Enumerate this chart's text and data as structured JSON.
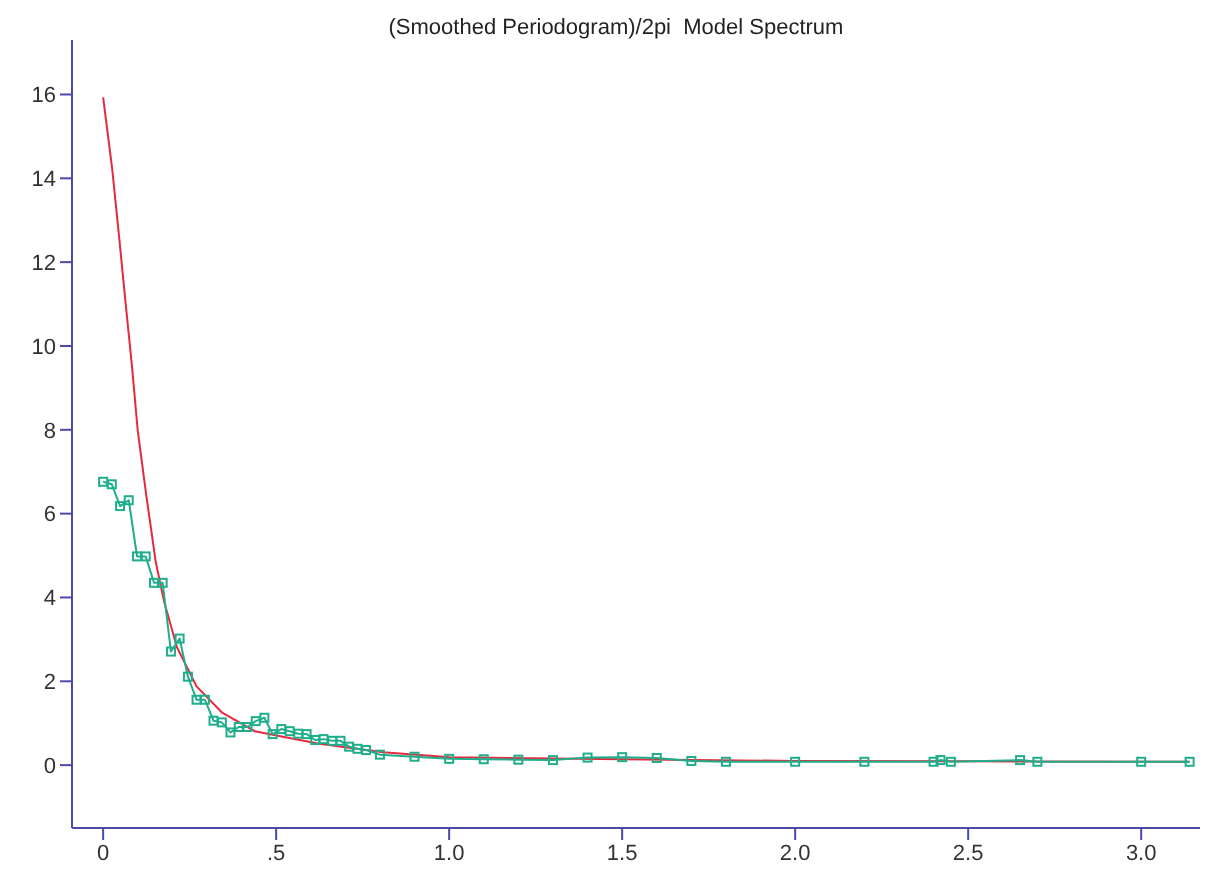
{
  "chart_data": {
    "type": "line",
    "title": "(Smoothed Periodogram)/2pi  Model Spectrum",
    "xlim": [
      -0.09,
      3.17
    ],
    "xticks": [
      0,
      {
        "value": 0.5,
        "label": ".5"
      },
      {
        "value": 1,
        "label": "1.0"
      },
      {
        "value": 1.5,
        "label": "1.5"
      },
      {
        "value": 2,
        "label": "2.0"
      },
      {
        "value": 2.5,
        "label": "2.5"
      },
      {
        "value": 3,
        "label": "3.0"
      }
    ],
    "ylim": [
      -1.5,
      17.3
    ],
    "yticks": [
      0,
      2,
      4,
      6,
      8,
      10,
      12,
      14,
      16
    ],
    "series": [
      {
        "color": "#e8283c",
        "marker": "none",
        "x": [
          0,
          0.026,
          0.045,
          0.064,
          0.083,
          0.1,
          0.125,
          0.152,
          0.176,
          0.213,
          0.27,
          0.344,
          0.438,
          0.624,
          0.81,
          1.0,
          1.5,
          2.0,
          2.5,
          3.14
        ],
        "values": [
          15.93,
          14.24,
          12.7,
          11.1,
          9.55,
          7.98,
          6.42,
          4.85,
          3.91,
          2.82,
          1.88,
          1.25,
          0.81,
          0.51,
          0.31,
          0.19,
          0.14,
          0.1,
          0.09,
          0.08
        ]
      },
      {
        "color": "#1fae8c",
        "marker": "square",
        "x": [
          0,
          0.025,
          0.049,
          0.074,
          0.098,
          0.123,
          0.147,
          0.172,
          0.196,
          0.221,
          0.245,
          0.27,
          0.294,
          0.319,
          0.343,
          0.368,
          0.392,
          0.417,
          0.441,
          0.466,
          0.49,
          0.515,
          0.539,
          0.564,
          0.588,
          0.613,
          0.637,
          0.662,
          0.686,
          0.711,
          0.735,
          0.76,
          0.8,
          0.9,
          1.0,
          1.1,
          1.2,
          1.3,
          1.4,
          1.5,
          1.6,
          1.7,
          1.8,
          2.0,
          2.2,
          2.4,
          2.42,
          2.45,
          2.65,
          2.7,
          3.0,
          3.14
        ],
        "values": [
          6.76,
          6.7,
          6.18,
          6.32,
          4.98,
          4.98,
          4.35,
          4.35,
          2.71,
          3.02,
          2.11,
          1.56,
          1.56,
          1.06,
          1.02,
          0.78,
          0.91,
          0.91,
          1.05,
          1.13,
          0.74,
          0.86,
          0.81,
          0.75,
          0.74,
          0.6,
          0.62,
          0.58,
          0.58,
          0.44,
          0.39,
          0.36,
          0.25,
          0.2,
          0.15,
          0.14,
          0.13,
          0.12,
          0.18,
          0.19,
          0.17,
          0.1,
          0.08,
          0.08,
          0.08,
          0.08,
          0.12,
          0.08,
          0.12,
          0.08,
          0.08,
          0.08
        ]
      }
    ]
  }
}
